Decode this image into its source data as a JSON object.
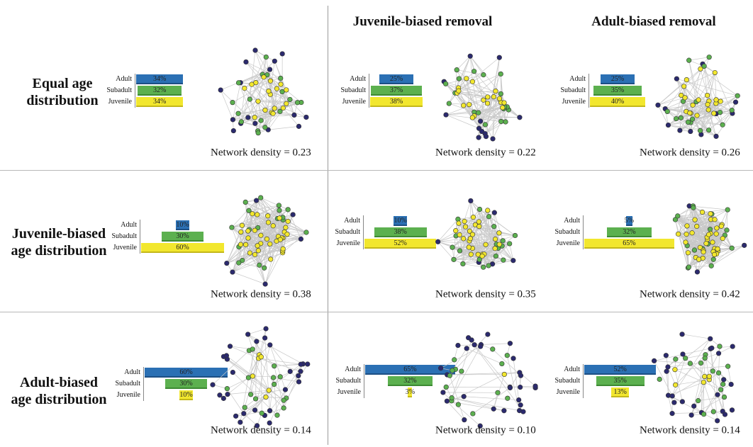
{
  "column_titles": [
    "Juvenile-biased removal",
    "Adult-biased removal"
  ],
  "row_titles": [
    [
      "Equal age",
      "distribution"
    ],
    [
      "Juvenile-biased",
      "age distribution"
    ],
    [
      "Adult-biased",
      "age distribution"
    ]
  ],
  "colors": {
    "adult": "#2b2a6e",
    "subadult": "#5cb04f",
    "juvenile": "#f2e72e",
    "edge": "#c8c8c8",
    "bar_adult": "#2b70b4",
    "bar_subadult": "#5cb04f",
    "bar_juvenile": "#f2e72e"
  },
  "age_labels": [
    "Adult",
    "Subadult",
    "Juvenile"
  ],
  "panels": [
    {
      "adult": "34%",
      "subadult": "32%",
      "juvenile": "34%",
      "a": 34,
      "s": 32,
      "j": 34,
      "density": "Network density = 0.23",
      "n": [
        16,
        18,
        18
      ],
      "seed": 11
    },
    {
      "adult": "25%",
      "subadult": "37%",
      "juvenile": "38%",
      "a": 25,
      "s": 37,
      "j": 38,
      "density": "Network density = 0.22",
      "n": [
        12,
        18,
        18
      ],
      "seed": 23
    },
    {
      "adult": "25%",
      "subadult": "35%",
      "juvenile": "40%",
      "a": 25,
      "s": 35,
      "j": 40,
      "density": "Network density = 0.26",
      "n": [
        12,
        17,
        20
      ],
      "seed": 37
    },
    {
      "adult": "10%",
      "subadult": "30%",
      "juvenile": "60%",
      "a": 10,
      "s": 30,
      "j": 60,
      "density": "Network density = 0.38",
      "n": [
        6,
        18,
        34
      ],
      "seed": 41
    },
    {
      "adult": "10%",
      "subadult": "38%",
      "juvenile": "52%",
      "a": 10,
      "s": 38,
      "j": 52,
      "density": "Network density = 0.35",
      "n": [
        6,
        20,
        27
      ],
      "seed": 53
    },
    {
      "adult": "5%",
      "subadult": "32%",
      "juvenile": "65%",
      "a": 5,
      "s": 32,
      "j": 65,
      "density": "Network density = 0.42",
      "n": [
        3,
        18,
        35
      ],
      "seed": 67
    },
    {
      "adult": "60%",
      "subadult": "30%",
      "juvenile": "10%",
      "a": 60,
      "s": 30,
      "j": 10,
      "density": "Network density = 0.14",
      "n": [
        30,
        16,
        6
      ],
      "seed": 71
    },
    {
      "adult": "65%",
      "subadult": "32%",
      "juvenile": "3%",
      "a": 65,
      "s": 32,
      "j": 3,
      "density": "Network density = 0.10",
      "n": [
        30,
        15,
        1
      ],
      "seed": 83
    },
    {
      "adult": "52%",
      "subadult": "35%",
      "juvenile": "13%",
      "a": 52,
      "s": 35,
      "j": 13,
      "density": "Network density = 0.14",
      "n": [
        26,
        17,
        6
      ],
      "seed": 97
    }
  ]
}
